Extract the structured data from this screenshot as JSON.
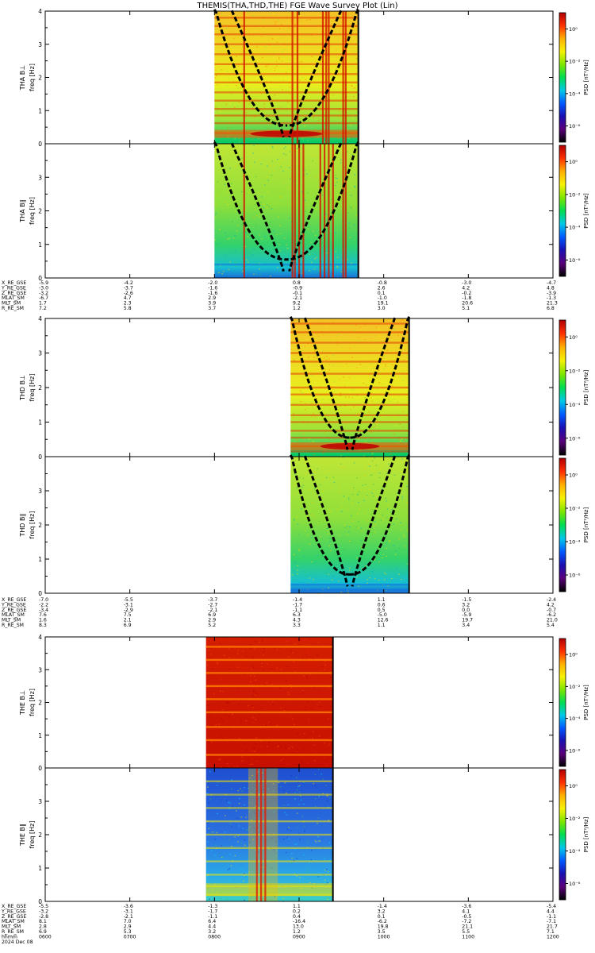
{
  "title": "THEMIS(THA,THD,THE) FGE Wave Survey Plot (Lin)",
  "colors": {
    "axis": "#000000",
    "background": "#ffffff",
    "colorbar_stops": [
      "#000000",
      "#5a007a",
      "#1a0fb0",
      "#0059ff",
      "#00c8e6",
      "#00dc50",
      "#7ee600",
      "#f6f200",
      "#ffb000",
      "#ff3000",
      "#b00000"
    ]
  },
  "chart_data": {
    "type": "heatmap",
    "time_labels": [
      "0600",
      "0700",
      "0800",
      "0900",
      "1000",
      "1100",
      "1200"
    ],
    "time_range_hours": [
      6,
      12
    ],
    "date_labels": [
      "hhmm",
      "2024 Dec 08"
    ],
    "panels": [
      {
        "id": "tha-bl",
        "ylabel": "THA B⊥",
        "yunit": "freq [Hz]",
        "yrange": [
          0,
          4
        ],
        "yticks": [
          "0",
          "1",
          "2",
          "3",
          "4"
        ],
        "data_span_hours": [
          8.0,
          9.7
        ],
        "style": "yellow",
        "stripes_hz": [
          0.32,
          0.62,
          0.85,
          1.05,
          1.3,
          1.55,
          1.85,
          2.1,
          2.4,
          2.7,
          3.0,
          3.3,
          3.55,
          3.8
        ],
        "vlines_hours": [
          8.35,
          8.92,
          8.98,
          9.28,
          9.32,
          9.35,
          9.52,
          9.55
        ],
        "dashed_curves": true,
        "colorbar": {
          "label": "PSD [nT²/Hz]",
          "ticks": [
            "10⁰",
            "10⁻²",
            "10⁻⁴",
            "10⁻⁶"
          ]
        }
      },
      {
        "id": "tha-bll",
        "ylabel": "THA B∥",
        "yunit": "freq [Hz]",
        "yrange": [
          0,
          4
        ],
        "yticks": [
          "0",
          "1",
          "2",
          "3"
        ],
        "data_span_hours": [
          8.0,
          9.7
        ],
        "style": "green",
        "stripes_hz": [
          0.4
        ],
        "vlines_hours": [
          8.35,
          8.92,
          8.95,
          9.0,
          9.05,
          9.25,
          9.3,
          9.35,
          9.4,
          9.52,
          9.55
        ],
        "dashed_curves": true,
        "colorbar": {
          "label": "PSD [nT²/Hz]",
          "ticks": [
            "10⁰",
            "10⁻²",
            "10⁻⁴",
            "10⁻⁶"
          ]
        }
      },
      {
        "id": "thd-bl",
        "ylabel": "THD B⊥",
        "yunit": "freq [Hz]",
        "yrange": [
          0,
          4
        ],
        "yticks": [
          "0",
          "1",
          "2",
          "3",
          "4"
        ],
        "data_span_hours": [
          8.9,
          10.3
        ],
        "style": "yellow",
        "stripes_hz": [
          0.15,
          0.3,
          0.55,
          0.75,
          1.0,
          1.2,
          1.5,
          1.8,
          2.0,
          2.4,
          2.75,
          3.0,
          3.3,
          3.6,
          3.85
        ],
        "vlines_hours": [],
        "dashed_curves": true,
        "colorbar": {
          "label": "PSD [nT²/Hz]",
          "ticks": [
            "10⁰",
            "10⁻²",
            "10⁻⁴",
            "10⁻⁶"
          ]
        }
      },
      {
        "id": "thd-bll",
        "ylabel": "THD B∥",
        "yunit": "freq [Hz]",
        "yrange": [
          0,
          4
        ],
        "yticks": [
          "0",
          "1",
          "2",
          "3"
        ],
        "data_span_hours": [
          8.9,
          10.3
        ],
        "style": "green",
        "stripes_hz": [
          0.1,
          0.25
        ],
        "vlines_hours": [],
        "dashed_curves": true,
        "colorbar": {
          "label": "PSD [nT²/Hz]",
          "ticks": [
            "10⁰",
            "10⁻²",
            "10⁻⁴",
            "10⁻⁶"
          ]
        }
      },
      {
        "id": "the-bl",
        "ylabel": "THE B⊥",
        "yunit": "freq [Hz]",
        "yrange": [
          0,
          4
        ],
        "yticks": [
          "0",
          "1",
          "2",
          "3",
          "4"
        ],
        "data_span_hours": [
          7.9,
          9.4
        ],
        "style": "red",
        "stripes_hz": [
          0.4,
          0.85,
          1.25,
          1.7,
          2.1,
          2.5,
          2.9,
          3.3,
          3.7
        ],
        "vlines_hours": [],
        "dashed_curves": false,
        "colorbar": {
          "label": "PSD [nT²/Hz]",
          "ticks": [
            "10⁰",
            "10⁻²",
            "10⁻⁴",
            "10⁻⁶"
          ]
        }
      },
      {
        "id": "the-bll",
        "ylabel": "THE B∥",
        "yunit": "freq [Hz]",
        "yrange": [
          0,
          4
        ],
        "yticks": [
          "0",
          "1",
          "2",
          "3"
        ],
        "data_span_hours": [
          7.9,
          9.4
        ],
        "style": "blue",
        "stripes_hz": [
          0.2,
          0.45,
          0.8,
          1.2,
          1.6,
          2.0,
          2.4,
          2.8,
          3.2,
          3.6
        ],
        "vlines_hours": [
          8.5,
          8.55,
          8.6
        ],
        "dashed_curves": false,
        "colorbar": {
          "label": "PSD [nT²/Hz]",
          "ticks": [
            "10⁰",
            "10⁻²",
            "10⁻⁴",
            "10⁻⁶"
          ]
        }
      }
    ],
    "orbit_tables": [
      {
        "labels": [
          "X_RE_GSE",
          "Y_RE_GSE",
          "Z_RE_GSE",
          "MLAT_SM",
          "MLT_SM",
          "R_RE_SM"
        ],
        "columns": [
          [
            "-5.9",
            "-3.0",
            "-3.2",
            "-6.7",
            "1.7",
            "7.2"
          ],
          [
            "-4.2",
            "-3.7",
            "-2.6",
            "4.7",
            "2.3",
            "5.8"
          ],
          [
            "-2.0",
            "-1.6",
            "-1.6",
            "2.9",
            "3.9",
            "3.7"
          ],
          [
            "0.8",
            "-0.9",
            "-0.1",
            "-2.1",
            "9.2",
            "1.2"
          ],
          [
            "-0.8",
            "2.6",
            "0.1",
            "-1.0",
            "19.1",
            "3.0"
          ],
          [
            "-3.0",
            "4.2",
            "-0.2",
            "-1.8",
            "20.6",
            "5.1"
          ],
          [
            "-4.7",
            "4.8",
            "-3.9",
            "-1.3",
            "21.3",
            "6.8"
          ]
        ]
      },
      {
        "labels": [
          "X_RE_GSE",
          "Y_RE_GSE",
          "Z_RE_GSE",
          "MLAT_SM",
          "MLT_SM",
          "R_RE_SM"
        ],
        "columns": [
          [
            "-7.0",
            "-2.2",
            "-3.4",
            "7.6",
            "1.6",
            "8.3"
          ],
          [
            "-5.5",
            "-3.1",
            "-2.9",
            "7.5",
            "2.1",
            "6.9"
          ],
          [
            "-3.7",
            "-2.7",
            "-2.1",
            "6.9",
            "2.9",
            "5.2"
          ],
          [
            "-1.4",
            "-1.7",
            "-1.1",
            "6.3",
            "4.3",
            "3.3"
          ],
          [
            "1.1",
            "0.6",
            "0.5",
            "-5.0",
            "12.6",
            "1.1"
          ],
          [
            "-1.5",
            "3.2",
            "0.0",
            "-5.9",
            "19.7",
            "3.4"
          ],
          [
            "-2.4",
            "4.2",
            "-0.7",
            "-6.2",
            "21.0",
            "5.4"
          ]
        ]
      },
      {
        "labels": [
          "X_RE_GSE",
          "Y_RE_GSE",
          "Z_RE_GSE",
          "MLAT_SM",
          "MLT_SM",
          "R_RE_SM"
        ],
        "columns": [
          [
            "-5.5",
            "-3.2",
            "-2.8",
            "8.1",
            "2.8",
            "6.9"
          ],
          [
            "-3.6",
            "-3.1",
            "-2.1",
            "7.0",
            "2.9",
            "5.3"
          ],
          [
            "-1.3",
            "-1.7",
            "-1.1",
            "6.4",
            "4.4",
            "3.2"
          ],
          [
            "1.1",
            "0.2",
            "0.4",
            "-16.4",
            "13.0",
            "1.2"
          ],
          [
            "-1.4",
            "3.2",
            "0.1",
            "-6.2",
            "19.8",
            "3.5"
          ],
          [
            "-3.6",
            "4.1",
            "-0.5",
            "-7.2",
            "21.1",
            "5.5"
          ],
          [
            "-5.4",
            "4.4",
            "-1.1",
            "-7.1",
            "21.7",
            "7.1"
          ]
        ]
      }
    ]
  }
}
